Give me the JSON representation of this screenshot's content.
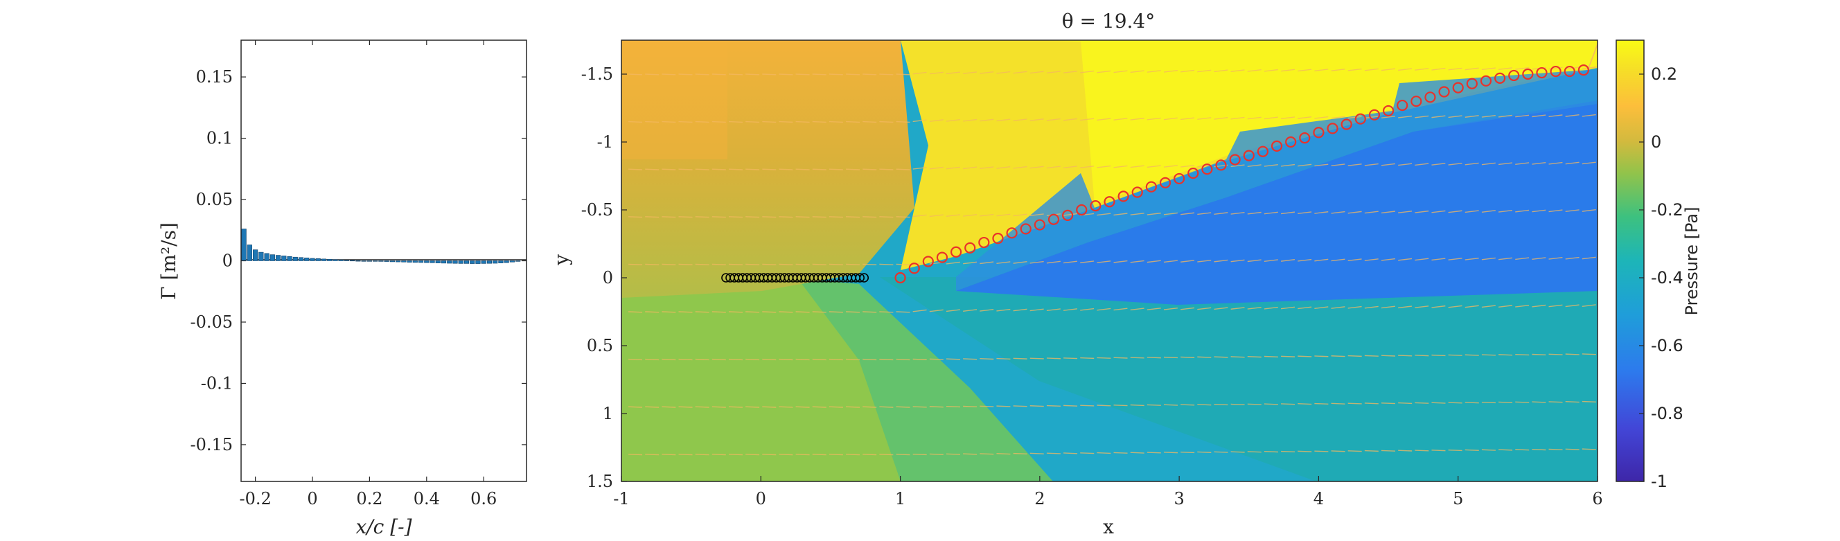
{
  "chart_data": [
    {
      "type": "bar",
      "xlabel": "x/c [-]",
      "ylabel": "Γ [m²/s]",
      "xlim": [
        -0.25,
        0.75
      ],
      "ylim": [
        -0.18,
        0.18
      ],
      "xticks": [
        "-0.2",
        "0",
        "0.2",
        "0.4",
        "0.6"
      ],
      "yticks": [
        "0.15",
        "0.1",
        "0.05",
        "0",
        "-0.05",
        "-0.1",
        "-0.15"
      ],
      "color": "#1f77b4",
      "x": [
        -0.24,
        -0.22,
        -0.2,
        -0.18,
        -0.16,
        -0.14,
        -0.12,
        -0.1,
        -0.08,
        -0.06,
        -0.04,
        -0.02,
        0.0,
        0.02,
        0.04,
        0.06,
        0.08,
        0.1,
        0.12,
        0.14,
        0.16,
        0.18,
        0.2,
        0.22,
        0.24,
        0.26,
        0.28,
        0.3,
        0.32,
        0.34,
        0.36,
        0.38,
        0.4,
        0.42,
        0.44,
        0.46,
        0.48,
        0.5,
        0.52,
        0.54,
        0.56,
        0.58,
        0.6,
        0.62,
        0.64,
        0.66,
        0.68,
        0.7,
        0.72
      ],
      "values": [
        0.026,
        0.013,
        0.009,
        0.007,
        0.006,
        0.005,
        0.0045,
        0.004,
        0.0035,
        0.003,
        0.0027,
        0.0024,
        0.002,
        0.0018,
        0.0015,
        0.0012,
        0.001,
        0.0008,
        0.0005,
        0.0003,
        0.0001,
        0.0,
        -0.0002,
        -0.0004,
        -0.0005,
        -0.0006,
        -0.0008,
        -0.0009,
        -0.001,
        -0.0012,
        -0.0013,
        -0.0014,
        -0.0015,
        -0.0016,
        -0.0018,
        -0.0019,
        -0.002,
        -0.0021,
        -0.0022,
        -0.0022,
        -0.0023,
        -0.0023,
        -0.0022,
        -0.0021,
        -0.002,
        -0.0018,
        -0.0015,
        -0.001,
        -0.0005
      ]
    },
    {
      "type": "heatmap",
      "title": "θ = 19.4°",
      "xlabel": "x",
      "ylabel": "y",
      "xlim": [
        -1,
        6
      ],
      "ylim": [
        -1.75,
        1.5
      ],
      "y_reversed": true,
      "xticks": [
        "-1",
        "0",
        "1",
        "2",
        "3",
        "4",
        "5",
        "6"
      ],
      "yticks": [
        "-1.5",
        "-1",
        "-0.5",
        "0",
        "0.5",
        "1",
        "1.5"
      ],
      "colorbar": {
        "label": "Pressure [Pa]",
        "range": [
          -1,
          0.3
        ],
        "ticks": [
          "0.2",
          "0",
          "-0.2",
          "-0.4",
          "-0.6",
          "-0.8",
          "-1"
        ]
      },
      "plate_markers": {
        "color": "#000000",
        "points": [
          [
            -0.25,
            0
          ],
          [
            -0.22,
            0
          ],
          [
            -0.19,
            0
          ],
          [
            -0.16,
            0
          ],
          [
            -0.13,
            0
          ],
          [
            -0.1,
            0
          ],
          [
            -0.07,
            0
          ],
          [
            -0.04,
            0
          ],
          [
            -0.01,
            0
          ],
          [
            0.02,
            0
          ],
          [
            0.05,
            0
          ],
          [
            0.08,
            0
          ],
          [
            0.11,
            0
          ],
          [
            0.14,
            0
          ],
          [
            0.17,
            0
          ],
          [
            0.2,
            0
          ],
          [
            0.23,
            0
          ],
          [
            0.26,
            0
          ],
          [
            0.29,
            0
          ],
          [
            0.32,
            0
          ],
          [
            0.35,
            0
          ],
          [
            0.38,
            0
          ],
          [
            0.41,
            0
          ],
          [
            0.44,
            0
          ],
          [
            0.47,
            0
          ],
          [
            0.5,
            0
          ],
          [
            0.53,
            0
          ],
          [
            0.56,
            0
          ],
          [
            0.59,
            0
          ],
          [
            0.62,
            0
          ],
          [
            0.65,
            0
          ],
          [
            0.68,
            0
          ],
          [
            0.71,
            0
          ],
          [
            0.74,
            0
          ]
        ]
      },
      "wake_markers": {
        "color": "#e8322a",
        "points": [
          [
            1.0,
            0.0
          ],
          [
            1.1,
            -0.07
          ],
          [
            1.2,
            -0.12
          ],
          [
            1.3,
            -0.15
          ],
          [
            1.4,
            -0.19
          ],
          [
            1.5,
            -0.22
          ],
          [
            1.6,
            -0.26
          ],
          [
            1.7,
            -0.29
          ],
          [
            1.8,
            -0.33
          ],
          [
            1.9,
            -0.36
          ],
          [
            2.0,
            -0.39
          ],
          [
            2.1,
            -0.43
          ],
          [
            2.2,
            -0.46
          ],
          [
            2.3,
            -0.5
          ],
          [
            2.4,
            -0.53
          ],
          [
            2.5,
            -0.56
          ],
          [
            2.6,
            -0.6
          ],
          [
            2.7,
            -0.63
          ],
          [
            2.8,
            -0.67
          ],
          [
            2.9,
            -0.7
          ],
          [
            3.0,
            -0.73
          ],
          [
            3.1,
            -0.77
          ],
          [
            3.2,
            -0.8
          ],
          [
            3.3,
            -0.83
          ],
          [
            3.4,
            -0.87
          ],
          [
            3.5,
            -0.9
          ],
          [
            3.6,
            -0.93
          ],
          [
            3.7,
            -0.97
          ],
          [
            3.8,
            -1.0
          ],
          [
            3.9,
            -1.03
          ],
          [
            4.0,
            -1.07
          ],
          [
            4.1,
            -1.1
          ],
          [
            4.2,
            -1.13
          ],
          [
            4.3,
            -1.17
          ],
          [
            4.4,
            -1.2
          ],
          [
            4.5,
            -1.23
          ],
          [
            4.6,
            -1.27
          ],
          [
            4.7,
            -1.3
          ],
          [
            4.8,
            -1.33
          ],
          [
            4.9,
            -1.37
          ],
          [
            5.0,
            -1.4
          ],
          [
            5.1,
            -1.43
          ],
          [
            5.2,
            -1.45
          ],
          [
            5.3,
            -1.47
          ],
          [
            5.4,
            -1.49
          ],
          [
            5.5,
            -1.5
          ],
          [
            5.6,
            -1.51
          ],
          [
            5.7,
            -1.52
          ],
          [
            5.8,
            -1.52
          ],
          [
            5.9,
            -1.53
          ]
        ]
      },
      "colors": {
        "yellow": "#f9f41e",
        "orange": "#fbbd33",
        "amber": "#f3b23a",
        "lime": "#9cc64a",
        "green": "#64c26c",
        "teal": "#26b2ad",
        "cyan": "#20a8c8",
        "blue": "#2a7bea",
        "quiver": "#f4b860"
      }
    }
  ]
}
